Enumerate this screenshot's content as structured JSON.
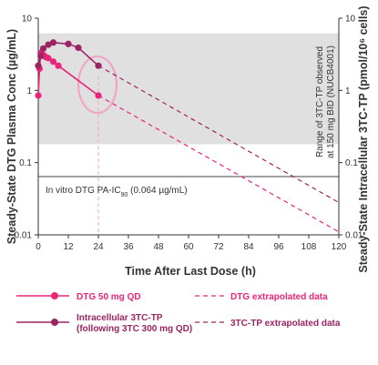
{
  "chart_data": {
    "type": "line",
    "xlabel": "Time After Last Dose (h)",
    "ylabel_left": "Steady-State DTG Plasma Conc (µg/mL)",
    "ylabel_right": "Steady-State Intracellular 3TC-TP (pmol/10⁶ cells)",
    "x_ticks": [
      0,
      12,
      24,
      36,
      48,
      60,
      72,
      84,
      96,
      108,
      120
    ],
    "xlim": [
      0,
      120
    ],
    "ylim_left": [
      0.01,
      10
    ],
    "ylim_right": [
      0.01,
      10
    ],
    "y_scale": "log",
    "y_tick_labels": [
      "10",
      "1",
      "0.1",
      "0.01"
    ],
    "y_tick_values": [
      10,
      1,
      0.1,
      0.01
    ],
    "band": {
      "y_range": [
        0.18,
        6.2
      ],
      "label_line1": "Range of 3TC-TP observed",
      "label_line2": "at 150 mg BID (NUCB4001)",
      "color": "#e0e0e0"
    },
    "threshold": {
      "label_prefix": "In vitro DTG PA-IC",
      "label_sub": "90",
      "label_suffix": " (0.064 µg/mL)",
      "y": 0.064
    },
    "highlight_x": 24,
    "series": [
      {
        "name": "DTG 50 mg QD",
        "color": "#e8257a",
        "x": [
          0,
          0.5,
          1,
          2,
          3,
          4,
          6,
          8,
          24
        ],
        "y": [
          0.85,
          2.0,
          3.3,
          3.1,
          2.9,
          2.8,
          2.5,
          2.2,
          0.85
        ]
      },
      {
        "name": "Intracellular 3TC-TP",
        "name_line2": "(following 3TC 300 mg QD)",
        "color": "#9b2462",
        "x": [
          0,
          1,
          2,
          4,
          6,
          12,
          16,
          24
        ],
        "y": [
          2.2,
          3.0,
          3.8,
          4.3,
          4.6,
          4.4,
          3.9,
          2.2
        ]
      }
    ],
    "extrapolated": [
      {
        "name": "DTG extrapolated data",
        "color": "#e8257a",
        "x": [
          24,
          120
        ],
        "y": [
          0.85,
          0.011
        ]
      },
      {
        "name": "3TC-TP extrapolated data",
        "color": "#9b2462",
        "x": [
          24,
          120
        ],
        "y": [
          2.2,
          0.028
        ]
      }
    ]
  }
}
